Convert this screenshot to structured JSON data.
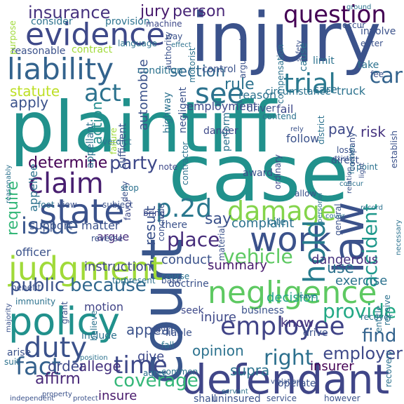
{
  "words": [
    {
      "t": "plaintiff",
      "c": "#21918c"
    },
    {
      "t": "case",
      "c": "#21918c"
    },
    {
      "t": "court",
      "c": "#39568c"
    },
    {
      "t": "injury",
      "c": "#3b528b"
    },
    {
      "t": "defendant",
      "c": "#404688"
    },
    {
      "t": "negligence",
      "c": "#5ec962"
    },
    {
      "t": "policy",
      "c": "#21918c"
    },
    {
      "t": "evidence",
      "c": "#3e4989"
    },
    {
      "t": "liability",
      "c": "#33638d"
    },
    {
      "t": "judgment",
      "c": "#a0da39"
    },
    {
      "t": "state",
      "c": "#3b528b"
    },
    {
      "t": "damage",
      "c": "#84d44b"
    },
    {
      "t": "employee",
      "c": "#414487"
    },
    {
      "t": "duty",
      "c": "#3b528b"
    },
    {
      "t": "fact",
      "c": "#34618d"
    },
    {
      "t": "question",
      "c": "#440154"
    },
    {
      "t": "insurance",
      "c": "#46327e"
    },
    {
      "t": "claim",
      "c": "#481f70"
    },
    {
      "t": "law",
      "c": "#3b528b"
    },
    {
      "t": "work",
      "c": "#3b528b"
    },
    {
      "t": "trial",
      "c": "#2a788e"
    },
    {
      "t": "see",
      "c": "#2c728e"
    },
    {
      "t": "act",
      "c": "#2c728e"
    },
    {
      "t": "p.2d",
      "c": "#2a788e"
    },
    {
      "t": "hold",
      "c": "#287c8e"
    },
    {
      "t": "time",
      "c": "#3e4989"
    },
    {
      "t": "issue",
      "c": "#39568c"
    },
    {
      "t": "vehicle",
      "c": "#5ec962"
    },
    {
      "t": "car",
      "c": "#33638d"
    },
    {
      "t": "accident",
      "c": "#1f988b"
    },
    {
      "t": "jury",
      "c": "#481a6c"
    },
    {
      "t": "person",
      "c": "#482677"
    },
    {
      "t": "section",
      "c": "#31688e"
    },
    {
      "t": "coverage",
      "c": "#35b779"
    },
    {
      "t": "right",
      "c": "#2d708e"
    },
    {
      "t": "employer",
      "c": "#3e4989"
    },
    {
      "t": "provide",
      "c": "#22a884"
    },
    {
      "t": "find",
      "c": "#33638d"
    },
    {
      "t": "public",
      "c": "#3b528b"
    },
    {
      "t": "because",
      "c": "#31688e"
    },
    {
      "t": "statute",
      "c": "#bddf26"
    },
    {
      "t": "apply",
      "c": "#3b528b"
    },
    {
      "t": "party",
      "c": "#3e4989"
    },
    {
      "t": "determine",
      "c": "#440154"
    },
    {
      "t": "require",
      "c": "#35b779"
    },
    {
      "t": "place",
      "c": "#472d7b"
    },
    {
      "t": "rule",
      "c": "#2c728e"
    },
    {
      "t": "say",
      "c": "#3b528b"
    },
    {
      "t": "use",
      "c": "#2c728e"
    },
    {
      "t": "opinion",
      "c": "#2c728e"
    },
    {
      "t": "appeal",
      "c": "#3b528b"
    },
    {
      "t": "order",
      "c": "#3e4989"
    },
    {
      "t": "allege",
      "c": "#46327e"
    },
    {
      "t": "affirm",
      "c": "#482878"
    },
    {
      "t": "result",
      "c": "#3b528b"
    },
    {
      "t": "action",
      "c": "#228c8d"
    },
    {
      "t": "risk",
      "c": "#46337f"
    },
    {
      "t": "pay",
      "c": "#3e4989"
    },
    {
      "t": "truck",
      "c": "#2c728e"
    },
    {
      "t": "insurer",
      "c": "#440154"
    },
    {
      "t": "supra",
      "c": "#2c728e"
    },
    {
      "t": "insure",
      "c": "#481a6c"
    },
    {
      "t": "give",
      "c": "#3e4989"
    },
    {
      "t": "know",
      "c": "#46327e"
    },
    {
      "t": "injure",
      "c": "#3e4989"
    },
    {
      "t": "decision",
      "c": "#20a486"
    },
    {
      "t": "dangerous",
      "c": "#46327e"
    },
    {
      "t": "exercise",
      "c": "#2c728e"
    },
    {
      "t": "complaint",
      "c": "#2c728e"
    },
    {
      "t": "conduct",
      "c": "#3b528b"
    },
    {
      "t": "summary",
      "c": "#481a6c"
    },
    {
      "t": "instruction",
      "c": "#404688"
    },
    {
      "t": "officer",
      "c": "#3b528b"
    },
    {
      "t": "motion",
      "c": "#414487"
    },
    {
      "t": "argue",
      "c": "#472d7b"
    },
    {
      "t": "support",
      "c": "#3b528b"
    },
    {
      "t": "matter",
      "c": "#3b528b"
    },
    {
      "t": "appellee",
      "c": "#2c728e"
    },
    {
      "t": "automobile",
      "c": "#3b528b"
    },
    {
      "t": "employment",
      "c": "#3e4989"
    },
    {
      "t": "fail",
      "c": "#3e4989"
    },
    {
      "t": "follow",
      "c": "#3b528b"
    },
    {
      "t": "reason",
      "c": "#2c728e"
    },
    {
      "t": "care",
      "c": "#2c728e"
    },
    {
      "t": "limit",
      "c": "#2c728e"
    },
    {
      "t": "cause",
      "c": "#2c728e"
    },
    {
      "t": "contract",
      "c": "#a0da39"
    },
    {
      "t": "reasonable",
      "c": "#3b528b"
    },
    {
      "t": "condition",
      "c": "#2c728e"
    },
    {
      "t": "control",
      "c": "#3b528b"
    },
    {
      "t": "consider",
      "c": "#2c728e"
    },
    {
      "t": "provision",
      "c": "#2c728e"
    },
    {
      "t": "purpose",
      "c": "#a0da39"
    },
    {
      "t": "machine",
      "c": "#3e4989"
    },
    {
      "t": "language",
      "c": "#2c728e"
    },
    {
      "t": "circumstance",
      "c": "#2c728e"
    },
    {
      "t": "driver",
      "c": "#3b528b"
    },
    {
      "t": "danger",
      "c": "#3e4989"
    },
    {
      "t": "perform",
      "c": "#2c728e"
    },
    {
      "t": "district",
      "c": "#2c728e"
    },
    {
      "t": "company",
      "c": "#3b528b"
    },
    {
      "t": "award",
      "c": "#3b528b"
    },
    {
      "t": "highway",
      "c": "#2c728e"
    },
    {
      "t": "negligent",
      "c": "#3b528b"
    },
    {
      "t": "contractor",
      "c": "#2c728e"
    },
    {
      "t": "ordinary",
      "c": "#3e4989"
    },
    {
      "t": "tort",
      "c": "#2c728e"
    },
    {
      "t": "present",
      "c": "#2c728e"
    },
    {
      "t": "doctrine",
      "c": "#3b528b"
    },
    {
      "t": "seek",
      "c": "#3e4989"
    },
    {
      "t": "business",
      "c": "#3b528b"
    },
    {
      "t": "drive",
      "c": "#3b528b"
    },
    {
      "t": "recover",
      "c": "#2c728e"
    },
    {
      "t": "establish",
      "c": "#3b528b"
    },
    {
      "t": "point",
      "c": "#2c728e"
    },
    {
      "t": "direct",
      "c": "#3b528b"
    },
    {
      "t": "receive",
      "c": "#2c728e"
    },
    {
      "t": "operate",
      "c": "#3b528b"
    },
    {
      "t": "liable",
      "c": "#3b528b"
    },
    {
      "t": "include",
      "c": "#2c728e"
    },
    {
      "t": "grant",
      "c": "#3b528b"
    },
    {
      "t": "immunity",
      "c": "#2c728e"
    },
    {
      "t": "benefit",
      "c": "#3b528b"
    },
    {
      "t": "arise",
      "c": "#3b528b"
    },
    {
      "t": "suit",
      "c": "#2c728e"
    },
    {
      "t": "majority",
      "c": "#3b528b"
    },
    {
      "t": "believe",
      "c": "#2c728e"
    },
    {
      "t": "foot",
      "c": "#2c728e"
    },
    {
      "t": "view",
      "c": "#3b528b"
    },
    {
      "t": "subject",
      "c": "#3b528b"
    },
    {
      "t": "bring",
      "c": "#3e4989"
    },
    {
      "t": "deny",
      "c": "#3b528b"
    },
    {
      "t": "favor",
      "c": "#3e4989"
    },
    {
      "t": "cite",
      "c": "#2c728e"
    },
    {
      "t": "there",
      "c": "#3b528b"
    },
    {
      "t": "stop",
      "c": "#2c728e"
    },
    {
      "t": "note",
      "c": "#3e4989"
    },
    {
      "t": "base",
      "c": "#3b528b"
    },
    {
      "t": "course",
      "c": "#2c728e"
    },
    {
      "t": "reverse",
      "c": "#3b528b"
    },
    {
      "t": "material",
      "c": "#3b528b"
    },
    {
      "t": "day",
      "c": "#3b528b"
    },
    {
      "t": "fall",
      "c": "#2c728e"
    },
    {
      "t": "agree",
      "c": "#2c728e"
    },
    {
      "t": "common",
      "c": "#2c728e"
    },
    {
      "t": "shall",
      "c": "#3b528b"
    },
    {
      "t": "uninsured",
      "c": "#3b528b"
    },
    {
      "t": "service",
      "c": "#3b528b"
    },
    {
      "t": "however",
      "c": "#3b528b"
    },
    {
      "t": "recovery",
      "c": "#2c728e"
    },
    {
      "t": "entitle",
      "c": "#2c728e"
    },
    {
      "t": "violation",
      "c": "#3b528b"
    },
    {
      "t": "exist",
      "c": "#3b528b"
    },
    {
      "t": "loss",
      "c": "#3b528b"
    },
    {
      "t": "take",
      "c": "#2c728e"
    },
    {
      "t": "enter",
      "c": "#3b528b"
    },
    {
      "t": "involve",
      "c": "#3b528b"
    },
    {
      "t": "occur",
      "c": "#3b528b"
    },
    {
      "t": "safety",
      "c": "#3b528b"
    },
    {
      "t": "verdict",
      "c": "#2c728e"
    },
    {
      "t": "failure",
      "c": "#a0da39"
    },
    {
      "t": "appellant",
      "c": "#2c728e"
    },
    {
      "t": "sufficient",
      "c": "#3b528b"
    },
    {
      "t": "authority",
      "c": "#3b528b"
    },
    {
      "t": "motorist",
      "c": "#2c728e"
    },
    {
      "t": "argument",
      "c": "#3b528b"
    },
    {
      "t": "contend",
      "c": "#2c728e"
    },
    {
      "t": "compensation",
      "c": "#2c728e"
    },
    {
      "t": "conclude",
      "c": "#3b528b"
    },
    {
      "t": "allow",
      "c": "#3b528b"
    },
    {
      "t": "leave",
      "c": "#2c728e"
    },
    {
      "t": "general",
      "c": "#3b528b"
    },
    {
      "t": "way",
      "c": "#3b528b"
    },
    {
      "t": "effect",
      "c": "#2c728e"
    },
    {
      "t": "reasonably",
      "c": "#2c728e"
    },
    {
      "t": "property",
      "c": "#3b528b"
    },
    {
      "t": "independent",
      "c": "#3b528b"
    },
    {
      "t": "protect",
      "c": "#3b528b"
    },
    {
      "t": "servant",
      "c": "#2c728e"
    },
    {
      "t": "personal",
      "c": "#2c728e"
    },
    {
      "t": "relation",
      "c": "#3b528b"
    },
    {
      "t": "record",
      "c": "#2c728e"
    },
    {
      "t": "cover",
      "c": "#2c728e"
    },
    {
      "t": "light",
      "c": "#3b528b"
    },
    {
      "t": "necessary",
      "c": "#2c728e"
    },
    {
      "t": "fee",
      "c": "#3b528b"
    },
    {
      "t": "ground",
      "c": "#2c728e"
    },
    {
      "t": "position",
      "c": "#2c728e"
    },
    {
      "t": "concur",
      "c": "#2c728e"
    },
    {
      "t": "function",
      "c": "#2c728e"
    },
    {
      "t": "rely",
      "c": "#3b528b"
    }
  ]
}
